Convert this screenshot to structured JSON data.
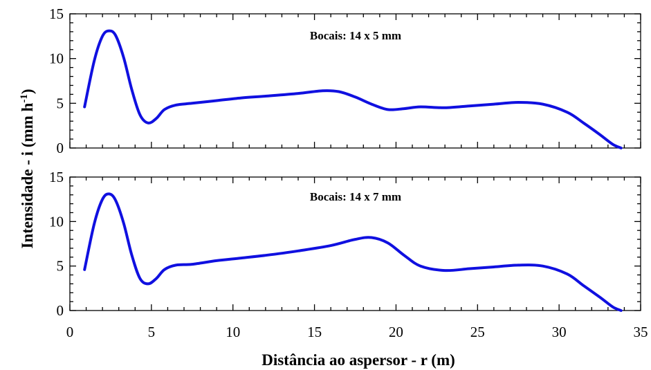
{
  "chart_data": {
    "type": "line",
    "xlabel": "Distância ao aspersor - r (m)",
    "ylabel": {
      "main": "Intensidade - i (mm h",
      "sup": "-1",
      "close": ")"
    },
    "xlim": [
      0,
      35
    ],
    "x_ticks": [
      0,
      5,
      10,
      15,
      20,
      25,
      30,
      35
    ],
    "line_color": "#1010e0",
    "panels": [
      {
        "annotation": "Bocais: 14 x 5 mm",
        "ylim": [
          0,
          15
        ],
        "y_ticks": [
          0,
          5,
          10,
          15
        ],
        "x": [
          0.9,
          1.5,
          2.0,
          2.4,
          2.8,
          3.3,
          3.8,
          4.3,
          4.8,
          5.3,
          5.8,
          6.5,
          7.5,
          9,
          10.5,
          12,
          14,
          15.5,
          16.5,
          17.5,
          18.5,
          19.5,
          20.5,
          21.5,
          23,
          24.5,
          26,
          27.5,
          29,
          30.5,
          31.5,
          32.5,
          33.3,
          33.8
        ],
        "y": [
          4.6,
          9.8,
          12.5,
          13.1,
          12.6,
          10.1,
          6.5,
          3.7,
          2.8,
          3.3,
          4.3,
          4.8,
          5.0,
          5.3,
          5.6,
          5.8,
          6.1,
          6.4,
          6.3,
          5.7,
          4.9,
          4.3,
          4.4,
          4.6,
          4.5,
          4.7,
          4.9,
          5.1,
          4.9,
          4.0,
          2.8,
          1.5,
          0.4,
          0.0
        ]
      },
      {
        "annotation": "Bocais: 14 x 7 mm",
        "ylim": [
          0,
          15
        ],
        "y_ticks": [
          0,
          5,
          10,
          15
        ],
        "x": [
          0.9,
          1.5,
          2.0,
          2.4,
          2.8,
          3.3,
          3.8,
          4.3,
          4.8,
          5.3,
          5.8,
          6.5,
          7.5,
          9,
          10.5,
          12,
          14,
          16,
          17.5,
          18.5,
          19.5,
          20.5,
          21.5,
          23,
          24.5,
          26,
          27.5,
          29,
          30.5,
          31.5,
          32.5,
          33.3,
          33.8
        ],
        "y": [
          4.6,
          9.8,
          12.5,
          13.1,
          12.4,
          9.8,
          6.2,
          3.6,
          3.0,
          3.6,
          4.6,
          5.1,
          5.2,
          5.6,
          5.9,
          6.2,
          6.7,
          7.3,
          8.0,
          8.2,
          7.6,
          6.2,
          5.0,
          4.5,
          4.7,
          4.9,
          5.1,
          5.0,
          4.1,
          2.8,
          1.5,
          0.4,
          0.0
        ]
      }
    ]
  }
}
